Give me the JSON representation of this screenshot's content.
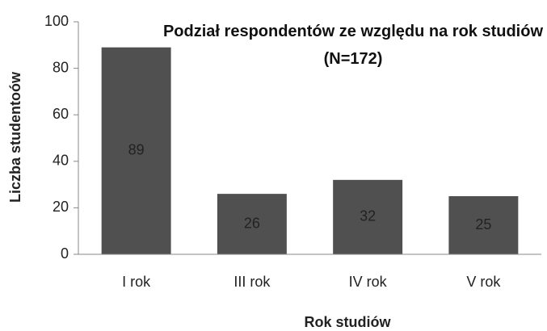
{
  "chart_data": {
    "type": "bar",
    "title": "Podział respondentów ze względu na rok studiów (N=172)",
    "x_label": "Rok studiów",
    "y_label": "Liczba studentoów",
    "categories": [
      "I rok",
      "III rok",
      "IV rok",
      "V rok"
    ],
    "values": [
      89,
      26,
      32,
      25
    ],
    "color": "#505050",
    "ylim": [
      0,
      100
    ],
    "yticks": [
      0,
      20,
      40,
      60,
      80,
      100
    ],
    "grid": false
  }
}
